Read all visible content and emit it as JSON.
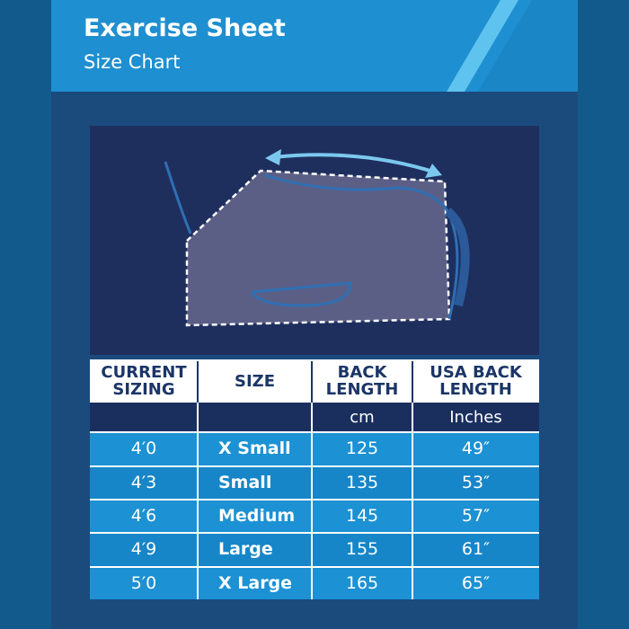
{
  "header": {
    "title": "Exercise Sheet",
    "subtitle": "Size Chart"
  },
  "table": {
    "columns": [
      [
        "CURRENT",
        "SIZING"
      ],
      [
        "SIZE"
      ],
      [
        "BACK",
        "LENGTH"
      ],
      [
        "USA BACK",
        "LENGTH"
      ]
    ],
    "units": {
      "back_length": "cm",
      "usa_back_length": "Inches"
    },
    "rows": [
      [
        "4′0",
        "X Small",
        "125",
        "49″"
      ],
      [
        "4′3",
        "Small",
        "135",
        "53″"
      ],
      [
        "4′6",
        "Medium",
        "145",
        "57″"
      ],
      [
        "4′9",
        "Large",
        "155",
        "61″"
      ],
      [
        "5′0",
        "X Large",
        "165",
        "65″"
      ]
    ]
  }
}
